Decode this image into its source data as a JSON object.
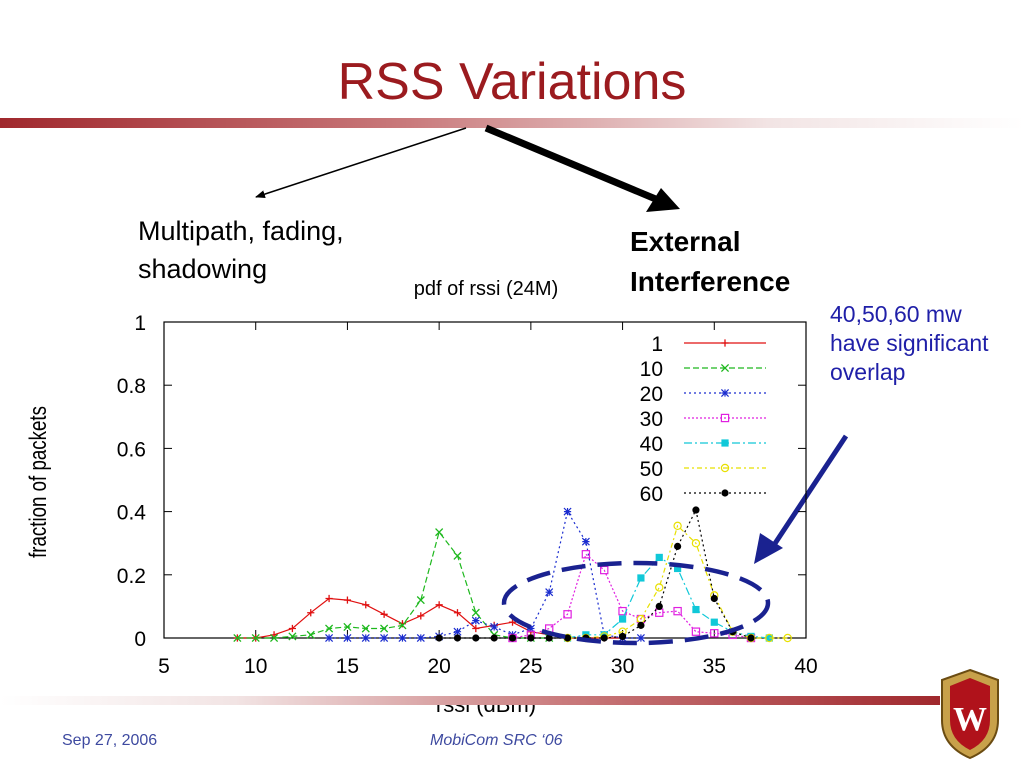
{
  "slide": {
    "title": "RSS Variations",
    "multipath_line1": "Multipath, fading,",
    "multipath_line2": "shadowing",
    "external_line1": "External",
    "external_line2": "Interference",
    "overlap_note": "40,50,60 mw have significant overlap",
    "footer_date": "Sep 27, 2006",
    "footer_conference": "MobiCom SRC ‘06",
    "logo_letter": "W"
  },
  "colors": {
    "title": "#9b1b1f",
    "note": "#1f1fa8",
    "ellipse": "#1a2290",
    "footer": "#3e4aa0"
  },
  "chart_data": {
    "type": "line",
    "title": "pdf of rssi (24M)",
    "xlabel": "rssi (dBm)",
    "ylabel": "fraction of packets",
    "xlim": [
      5,
      40
    ],
    "ylim": [
      0,
      1
    ],
    "xticks": [
      5,
      10,
      15,
      20,
      25,
      30,
      35,
      40
    ],
    "yticks": [
      0,
      0.2,
      0.4,
      0.6,
      0.8,
      1
    ],
    "ytick_labels": [
      "0",
      "0.2",
      "0.4",
      "0.6",
      "0.8",
      "1"
    ],
    "legend_position": "top-right",
    "grid": false,
    "series": [
      {
        "name": "1",
        "color": "#e01010",
        "dash": "",
        "marker": "plus",
        "points": [
          [
            9,
            0
          ],
          [
            10,
            0
          ],
          [
            11,
            0.01
          ],
          [
            12,
            0.03
          ],
          [
            13,
            0.08
          ],
          [
            14,
            0.125
          ],
          [
            15,
            0.12
          ],
          [
            16,
            0.105
          ],
          [
            17,
            0.075
          ],
          [
            18,
            0.045
          ],
          [
            19,
            0.07
          ],
          [
            20,
            0.105
          ],
          [
            21,
            0.08
          ],
          [
            22,
            0.03
          ],
          [
            23,
            0.04
          ],
          [
            24,
            0.05
          ],
          [
            25,
            0.02
          ],
          [
            26,
            0.01
          ],
          [
            27,
            0
          ],
          [
            28,
            0
          ],
          [
            29,
            0
          ],
          [
            30,
            0
          ]
        ]
      },
      {
        "name": "10",
        "color": "#1db81d",
        "dash": "6,3",
        "marker": "x",
        "points": [
          [
            9,
            0
          ],
          [
            10,
            0
          ],
          [
            11,
            0
          ],
          [
            12,
            0.005
          ],
          [
            13,
            0.01
          ],
          [
            14,
            0.03
          ],
          [
            15,
            0.035
          ],
          [
            16,
            0.03
          ],
          [
            17,
            0.03
          ],
          [
            18,
            0.04
          ],
          [
            19,
            0.12
          ],
          [
            20,
            0.335
          ],
          [
            21,
            0.26
          ],
          [
            22,
            0.08
          ],
          [
            23,
            0.01
          ],
          [
            24,
            0
          ],
          [
            25,
            0
          ],
          [
            26,
            0
          ]
        ]
      },
      {
        "name": "20",
        "color": "#1a2ccf",
        "dash": "2,3",
        "marker": "star",
        "points": [
          [
            14,
            0
          ],
          [
            15,
            0
          ],
          [
            16,
            0
          ],
          [
            17,
            0
          ],
          [
            18,
            0
          ],
          [
            19,
            0
          ],
          [
            20,
            0.005
          ],
          [
            21,
            0.02
          ],
          [
            22,
            0.055
          ],
          [
            23,
            0.035
          ],
          [
            24,
            0.01
          ],
          [
            25,
            0.03
          ],
          [
            26,
            0.145
          ],
          [
            27,
            0.4
          ],
          [
            28,
            0.305
          ],
          [
            29,
            0.01
          ],
          [
            30,
            0
          ],
          [
            31,
            0
          ]
        ]
      },
      {
        "name": "30",
        "color": "#e020e0",
        "dash": "2,2",
        "marker": "square",
        "points": [
          [
            24,
            0
          ],
          [
            25,
            0.01
          ],
          [
            26,
            0.03
          ],
          [
            27,
            0.075
          ],
          [
            28,
            0.265
          ],
          [
            29,
            0.215
          ],
          [
            30,
            0.085
          ],
          [
            31,
            0.06
          ],
          [
            32,
            0.08
          ],
          [
            33,
            0.085
          ],
          [
            34,
            0.02
          ],
          [
            35,
            0.015
          ],
          [
            36,
            0.01
          ],
          [
            37,
            0
          ]
        ]
      },
      {
        "name": "40",
        "color": "#10c8d8",
        "dash": "8,3,2,3",
        "marker": "filled-square",
        "points": [
          [
            27,
            0
          ],
          [
            28,
            0.01
          ],
          [
            29,
            0.01
          ],
          [
            30,
            0.06
          ],
          [
            31,
            0.19
          ],
          [
            32,
            0.255
          ],
          [
            33,
            0.22
          ],
          [
            34,
            0.09
          ],
          [
            35,
            0.05
          ],
          [
            36,
            0.02
          ],
          [
            37,
            0.005
          ],
          [
            38,
            0
          ]
        ]
      },
      {
        "name": "50",
        "color": "#e8e000",
        "dash": "5,3,2,3",
        "marker": "circle",
        "points": [
          [
            27,
            0
          ],
          [
            28,
            0
          ],
          [
            29,
            0.005
          ],
          [
            30,
            0.02
          ],
          [
            31,
            0.06
          ],
          [
            32,
            0.16
          ],
          [
            33,
            0.355
          ],
          [
            34,
            0.3
          ],
          [
            35,
            0.135
          ],
          [
            36,
            0.02
          ],
          [
            37,
            0
          ],
          [
            38,
            0
          ],
          [
            39,
            0
          ]
        ]
      },
      {
        "name": "60",
        "color": "#000000",
        "dash": "2,3",
        "marker": "filled-circle",
        "points": [
          [
            20,
            0
          ],
          [
            21,
            0
          ],
          [
            22,
            0
          ],
          [
            23,
            0
          ],
          [
            24,
            0
          ],
          [
            25,
            0
          ],
          [
            26,
            0
          ],
          [
            27,
            0
          ],
          [
            28,
            0
          ],
          [
            29,
            0
          ],
          [
            30,
            0.005
          ],
          [
            31,
            0.04
          ],
          [
            32,
            0.1
          ],
          [
            33,
            0.29
          ],
          [
            34,
            0.405
          ],
          [
            35,
            0.125
          ],
          [
            36,
            0.02
          ],
          [
            37,
            0
          ]
        ]
      }
    ]
  }
}
